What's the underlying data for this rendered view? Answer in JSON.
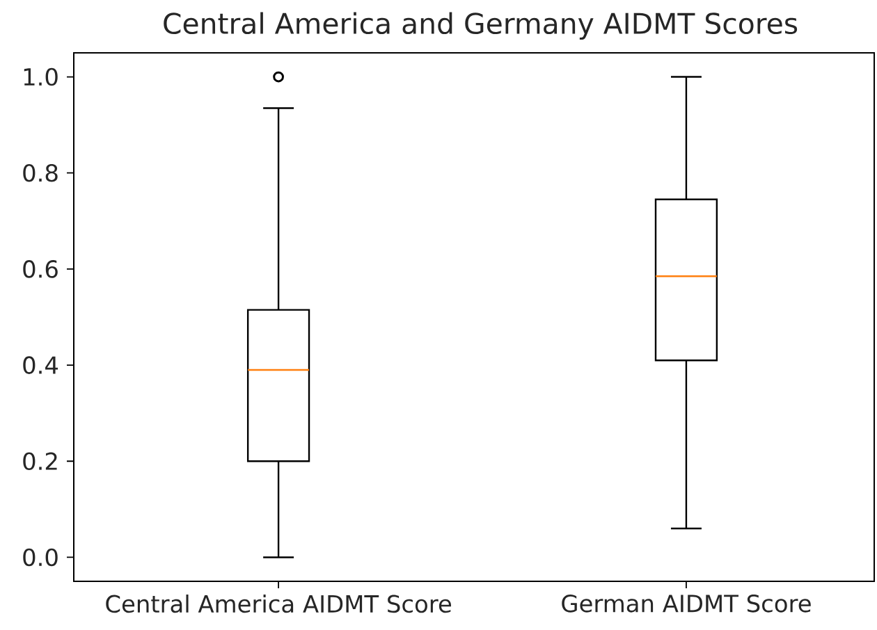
{
  "chart_data": {
    "type": "box",
    "title": "Central America and Germany AIDMT Scores",
    "categories": [
      "Central America AIDMT Score",
      "German AIDMT Score"
    ],
    "boxes": [
      {
        "low": 0.0,
        "q1": 0.2,
        "median": 0.39,
        "q3": 0.515,
        "high": 0.935,
        "outliers": [
          1.0
        ]
      },
      {
        "low": 0.06,
        "q1": 0.41,
        "median": 0.585,
        "q3": 0.745,
        "high": 1.0
      }
    ],
    "ylim": [
      -0.05,
      1.05
    ],
    "yticks": [
      {
        "value": 0,
        "label": "0.0"
      },
      {
        "value": 0.2,
        "label": "0.2"
      },
      {
        "value": 0.4,
        "label": "0.4"
      },
      {
        "value": 0.6,
        "label": "0.6"
      },
      {
        "value": 0.8,
        "label": "0.8"
      },
      {
        "value": 1.0,
        "label": "1.0"
      }
    ]
  }
}
